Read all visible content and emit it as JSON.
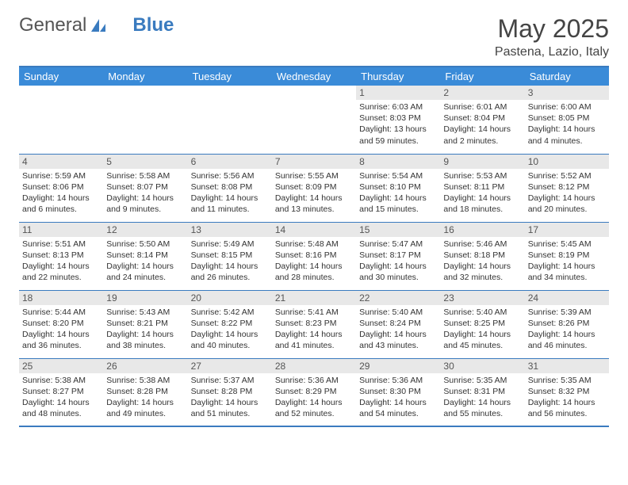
{
  "brand": {
    "part1": "General",
    "part2": "Blue"
  },
  "title": "May 2025",
  "location": "Pastena, Lazio, Italy",
  "colors": {
    "header_bg": "#3a8bd8",
    "border": "#3a7bbf",
    "daynum_bg": "#e8e8e8",
    "brand_blue": "#3a7bbf"
  },
  "day_headers": [
    "Sunday",
    "Monday",
    "Tuesday",
    "Wednesday",
    "Thursday",
    "Friday",
    "Saturday"
  ],
  "weeks": [
    [
      null,
      null,
      null,
      null,
      {
        "n": "1",
        "sr": "6:03 AM",
        "ss": "8:03 PM",
        "dl": "13 hours and 59 minutes."
      },
      {
        "n": "2",
        "sr": "6:01 AM",
        "ss": "8:04 PM",
        "dl": "14 hours and 2 minutes."
      },
      {
        "n": "3",
        "sr": "6:00 AM",
        "ss": "8:05 PM",
        "dl": "14 hours and 4 minutes."
      }
    ],
    [
      {
        "n": "4",
        "sr": "5:59 AM",
        "ss": "8:06 PM",
        "dl": "14 hours and 6 minutes."
      },
      {
        "n": "5",
        "sr": "5:58 AM",
        "ss": "8:07 PM",
        "dl": "14 hours and 9 minutes."
      },
      {
        "n": "6",
        "sr": "5:56 AM",
        "ss": "8:08 PM",
        "dl": "14 hours and 11 minutes."
      },
      {
        "n": "7",
        "sr": "5:55 AM",
        "ss": "8:09 PM",
        "dl": "14 hours and 13 minutes."
      },
      {
        "n": "8",
        "sr": "5:54 AM",
        "ss": "8:10 PM",
        "dl": "14 hours and 15 minutes."
      },
      {
        "n": "9",
        "sr": "5:53 AM",
        "ss": "8:11 PM",
        "dl": "14 hours and 18 minutes."
      },
      {
        "n": "10",
        "sr": "5:52 AM",
        "ss": "8:12 PM",
        "dl": "14 hours and 20 minutes."
      }
    ],
    [
      {
        "n": "11",
        "sr": "5:51 AM",
        "ss": "8:13 PM",
        "dl": "14 hours and 22 minutes."
      },
      {
        "n": "12",
        "sr": "5:50 AM",
        "ss": "8:14 PM",
        "dl": "14 hours and 24 minutes."
      },
      {
        "n": "13",
        "sr": "5:49 AM",
        "ss": "8:15 PM",
        "dl": "14 hours and 26 minutes."
      },
      {
        "n": "14",
        "sr": "5:48 AM",
        "ss": "8:16 PM",
        "dl": "14 hours and 28 minutes."
      },
      {
        "n": "15",
        "sr": "5:47 AM",
        "ss": "8:17 PM",
        "dl": "14 hours and 30 minutes."
      },
      {
        "n": "16",
        "sr": "5:46 AM",
        "ss": "8:18 PM",
        "dl": "14 hours and 32 minutes."
      },
      {
        "n": "17",
        "sr": "5:45 AM",
        "ss": "8:19 PM",
        "dl": "14 hours and 34 minutes."
      }
    ],
    [
      {
        "n": "18",
        "sr": "5:44 AM",
        "ss": "8:20 PM",
        "dl": "14 hours and 36 minutes."
      },
      {
        "n": "19",
        "sr": "5:43 AM",
        "ss": "8:21 PM",
        "dl": "14 hours and 38 minutes."
      },
      {
        "n": "20",
        "sr": "5:42 AM",
        "ss": "8:22 PM",
        "dl": "14 hours and 40 minutes."
      },
      {
        "n": "21",
        "sr": "5:41 AM",
        "ss": "8:23 PM",
        "dl": "14 hours and 41 minutes."
      },
      {
        "n": "22",
        "sr": "5:40 AM",
        "ss": "8:24 PM",
        "dl": "14 hours and 43 minutes."
      },
      {
        "n": "23",
        "sr": "5:40 AM",
        "ss": "8:25 PM",
        "dl": "14 hours and 45 minutes."
      },
      {
        "n": "24",
        "sr": "5:39 AM",
        "ss": "8:26 PM",
        "dl": "14 hours and 46 minutes."
      }
    ],
    [
      {
        "n": "25",
        "sr": "5:38 AM",
        "ss": "8:27 PM",
        "dl": "14 hours and 48 minutes."
      },
      {
        "n": "26",
        "sr": "5:38 AM",
        "ss": "8:28 PM",
        "dl": "14 hours and 49 minutes."
      },
      {
        "n": "27",
        "sr": "5:37 AM",
        "ss": "8:28 PM",
        "dl": "14 hours and 51 minutes."
      },
      {
        "n": "28",
        "sr": "5:36 AM",
        "ss": "8:29 PM",
        "dl": "14 hours and 52 minutes."
      },
      {
        "n": "29",
        "sr": "5:36 AM",
        "ss": "8:30 PM",
        "dl": "14 hours and 54 minutes."
      },
      {
        "n": "30",
        "sr": "5:35 AM",
        "ss": "8:31 PM",
        "dl": "14 hours and 55 minutes."
      },
      {
        "n": "31",
        "sr": "5:35 AM",
        "ss": "8:32 PM",
        "dl": "14 hours and 56 minutes."
      }
    ]
  ],
  "labels": {
    "sunrise": "Sunrise: ",
    "sunset": "Sunset: ",
    "daylight": "Daylight: "
  }
}
